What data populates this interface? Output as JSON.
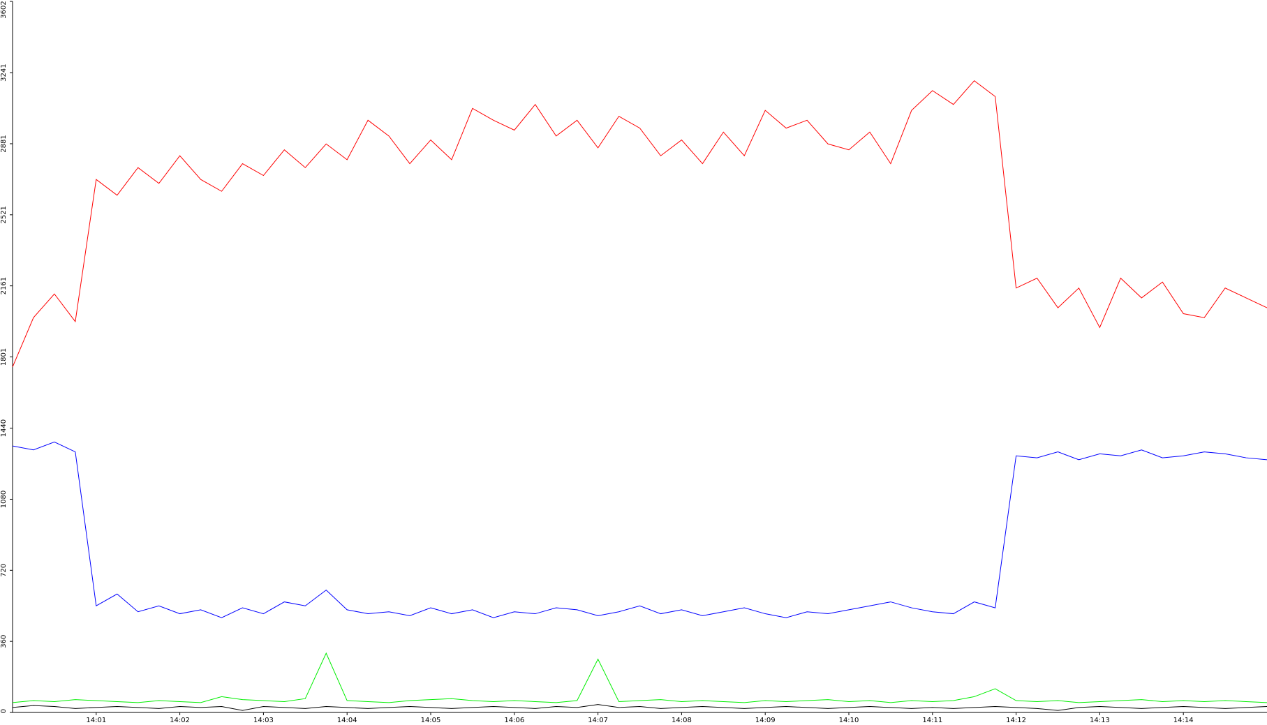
{
  "chart_data": {
    "type": "line",
    "x": [
      840,
      840.25,
      840.5,
      840.75,
      841,
      841.25,
      841.5,
      841.75,
      842,
      842.25,
      842.5,
      842.75,
      843,
      843.25,
      843.5,
      843.75,
      844,
      844.25,
      844.5,
      844.75,
      845,
      845.25,
      845.5,
      845.75,
      846,
      846.25,
      846.5,
      846.75,
      847,
      847.25,
      847.5,
      847.75,
      848,
      848.25,
      848.5,
      848.75,
      849,
      849.25,
      849.5,
      849.75,
      850,
      850.25,
      850.5,
      850.75,
      851,
      851.25,
      851.5,
      851.75,
      852,
      852.25,
      852.5,
      852.75,
      853,
      853.25,
      853.5,
      853.75,
      854,
      854.25,
      854.5,
      854.75,
      855
    ],
    "series": [
      {
        "color": "#ff0000",
        "values": [
          1750,
          2000,
          2120,
          1980,
          2700,
          2620,
          2760,
          2680,
          2820,
          2700,
          2640,
          2780,
          2720,
          2850,
          2760,
          2880,
          2800,
          3000,
          2920,
          2780,
          2900,
          2800,
          3060,
          3000,
          2950,
          3080,
          2920,
          3000,
          2860,
          3020,
          2960,
          2820,
          2900,
          2780,
          2940,
          2820,
          3050,
          2960,
          3000,
          2880,
          2850,
          2940,
          2780,
          3050,
          3150,
          3080,
          3200,
          3120,
          2150,
          2200,
          2050,
          2150,
          1950,
          2200,
          2100,
          2180,
          2020,
          2000,
          2150,
          2100,
          2050
        ]
      },
      {
        "color": "#0000ff",
        "values": [
          1350,
          1330,
          1370,
          1320,
          540,
          600,
          510,
          540,
          500,
          520,
          480,
          530,
          500,
          560,
          540,
          620,
          520,
          500,
          510,
          490,
          530,
          500,
          520,
          480,
          510,
          500,
          530,
          520,
          490,
          510,
          540,
          500,
          520,
          490,
          510,
          530,
          500,
          480,
          510,
          500,
          520,
          540,
          560,
          530,
          510,
          500,
          560,
          530,
          1300,
          1290,
          1320,
          1280,
          1310,
          1300,
          1330,
          1290,
          1300,
          1320,
          1310,
          1290,
          1280
        ]
      },
      {
        "color": "#00ee00",
        "values": [
          50,
          60,
          55,
          65,
          60,
          55,
          50,
          60,
          55,
          50,
          80,
          65,
          60,
          55,
          70,
          300,
          60,
          55,
          50,
          60,
          65,
          70,
          60,
          55,
          60,
          55,
          50,
          60,
          270,
          55,
          60,
          65,
          55,
          60,
          55,
          50,
          60,
          55,
          60,
          65,
          55,
          60,
          50,
          60,
          55,
          60,
          80,
          120,
          60,
          55,
          60,
          50,
          55,
          60,
          65,
          55,
          60,
          55,
          60,
          55,
          50
        ]
      },
      {
        "color": "#000000",
        "values": [
          25,
          35,
          30,
          20,
          25,
          30,
          25,
          20,
          30,
          25,
          30,
          10,
          30,
          25,
          20,
          30,
          25,
          20,
          25,
          30,
          25,
          20,
          25,
          30,
          25,
          20,
          30,
          25,
          40,
          25,
          30,
          20,
          25,
          30,
          25,
          20,
          25,
          30,
          25,
          20,
          25,
          30,
          25,
          20,
          25,
          20,
          25,
          30,
          25,
          20,
          10,
          25,
          30,
          25,
          20,
          25,
          30,
          25,
          20,
          25,
          30
        ]
      }
    ],
    "xlim": [
      840,
      855
    ],
    "xticks": [
      {
        "value": 841,
        "label": "14:01"
      },
      {
        "value": 842,
        "label": "14:02"
      },
      {
        "value": 843,
        "label": "14:03"
      },
      {
        "value": 844,
        "label": "14:04"
      },
      {
        "value": 845,
        "label": "14:05"
      },
      {
        "value": 846,
        "label": "14:06"
      },
      {
        "value": 847,
        "label": "14:07"
      },
      {
        "value": 848,
        "label": "14:08"
      },
      {
        "value": 849,
        "label": "14:09"
      },
      {
        "value": 850,
        "label": "14:10"
      },
      {
        "value": 851,
        "label": "14:11"
      },
      {
        "value": 852,
        "label": "14:12"
      },
      {
        "value": 853,
        "label": "14:13"
      },
      {
        "value": 854,
        "label": "14:14"
      }
    ],
    "ylim": [
      0,
      3602
    ],
    "yticks": [
      0,
      360,
      720,
      1080,
      1440,
      1801,
      2161,
      2521,
      2881,
      3241,
      3602
    ]
  }
}
